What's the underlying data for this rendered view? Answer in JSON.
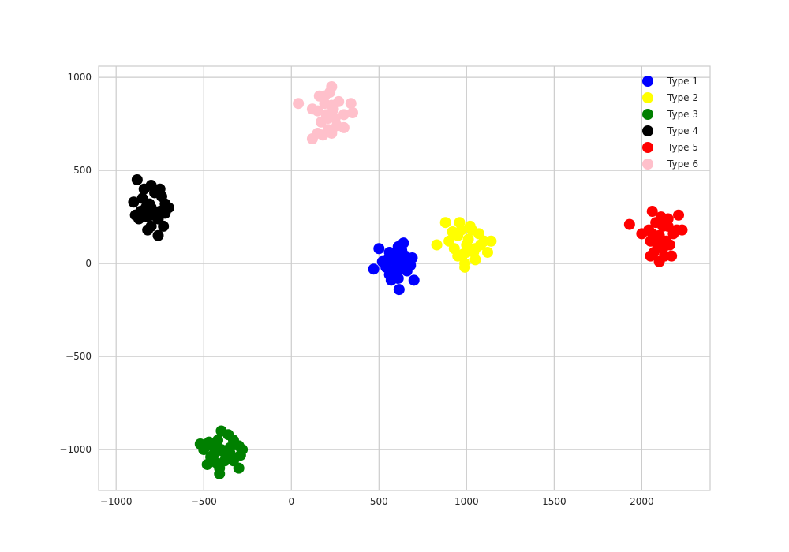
{
  "chart_data": {
    "type": "scatter",
    "title": "",
    "xlabel": "",
    "ylabel": "",
    "xlim": [
      -1100,
      2390
    ],
    "ylim": [
      -1220,
      1060
    ],
    "xticks": [
      -1000,
      -500,
      0,
      500,
      1000,
      1500,
      2000
    ],
    "yticks": [
      -1000,
      -500,
      0,
      500,
      1000
    ],
    "xtick_labels": [
      "−1000",
      "−500",
      "0",
      "500",
      "1000",
      "1500",
      "2000"
    ],
    "ytick_labels": [
      "−1000",
      "−500",
      "0",
      "500",
      "1000"
    ],
    "grid": true,
    "legend_placement": "top-right",
    "series": [
      {
        "name": "Type 1",
        "color": "#0000ff",
        "points": [
          [
            600,
            0
          ],
          [
            550,
            20
          ],
          [
            650,
            40
          ],
          [
            580,
            -40
          ],
          [
            620,
            -20
          ],
          [
            560,
            60
          ],
          [
            630,
            70
          ],
          [
            520,
            10
          ],
          [
            690,
            30
          ],
          [
            610,
            -80
          ],
          [
            570,
            -90
          ],
          [
            660,
            -40
          ],
          [
            500,
            80
          ],
          [
            640,
            110
          ],
          [
            590,
            40
          ],
          [
            540,
            -20
          ],
          [
            680,
            -10
          ],
          [
            610,
            90
          ],
          [
            700,
            -90
          ],
          [
            470,
            -30
          ],
          [
            615,
            -140
          ],
          [
            600,
            -60
          ],
          [
            650,
            0
          ],
          [
            560,
            -60
          ],
          [
            620,
            40
          ]
        ]
      },
      {
        "name": "Type 2",
        "color": "#ffff00",
        "points": [
          [
            1000,
            100
          ],
          [
            950,
            150
          ],
          [
            1050,
            80
          ],
          [
            980,
            50
          ],
          [
            1020,
            200
          ],
          [
            960,
            220
          ],
          [
            1100,
            120
          ],
          [
            900,
            120
          ],
          [
            1040,
            60
          ],
          [
            990,
            0
          ],
          [
            930,
            80
          ],
          [
            1070,
            160
          ],
          [
            1010,
            130
          ],
          [
            970,
            180
          ],
          [
            1120,
            60
          ],
          [
            1050,
            20
          ],
          [
            950,
            40
          ],
          [
            880,
            220
          ],
          [
            1030,
            180
          ],
          [
            1000,
            60
          ],
          [
            920,
            170
          ],
          [
            1080,
            100
          ],
          [
            1140,
            120
          ],
          [
            830,
            100
          ],
          [
            990,
            -20
          ]
        ]
      },
      {
        "name": "Type 3",
        "color": "#008000",
        "points": [
          [
            -400,
            -1000
          ],
          [
            -450,
            -980
          ],
          [
            -350,
            -1020
          ],
          [
            -420,
            -950
          ],
          [
            -380,
            -1060
          ],
          [
            -460,
            -1040
          ],
          [
            -300,
            -980
          ],
          [
            -500,
            -1000
          ],
          [
            -360,
            -920
          ],
          [
            -410,
            -1100
          ],
          [
            -330,
            -1060
          ],
          [
            -470,
            -960
          ],
          [
            -390,
            -1010
          ],
          [
            -430,
            -1070
          ],
          [
            -280,
            -1000
          ],
          [
            -520,
            -970
          ],
          [
            -300,
            -1100
          ],
          [
            -400,
            -900
          ],
          [
            -350,
            -990
          ],
          [
            -440,
            -1020
          ],
          [
            -370,
            -1040
          ],
          [
            -480,
            -1080
          ],
          [
            -330,
            -950
          ],
          [
            -410,
            -1130
          ],
          [
            -290,
            -1030
          ]
        ]
      },
      {
        "name": "Type 4",
        "color": "#000000",
        "points": [
          [
            -800,
            300
          ],
          [
            -850,
            350
          ],
          [
            -750,
            280
          ],
          [
            -820,
            250
          ],
          [
            -780,
            380
          ],
          [
            -860,
            280
          ],
          [
            -720,
            320
          ],
          [
            -900,
            330
          ],
          [
            -800,
            200
          ],
          [
            -760,
            240
          ],
          [
            -840,
            400
          ],
          [
            -740,
            360
          ],
          [
            -810,
            320
          ],
          [
            -790,
            260
          ],
          [
            -880,
            450
          ],
          [
            -730,
            200
          ],
          [
            -700,
            300
          ],
          [
            -870,
            240
          ],
          [
            -820,
            180
          ],
          [
            -760,
            150
          ],
          [
            -800,
            420
          ],
          [
            -750,
            400
          ],
          [
            -890,
            260
          ],
          [
            -720,
            270
          ],
          [
            -830,
            300
          ]
        ]
      },
      {
        "name": "Type 5",
        "color": "#ff0000",
        "points": [
          [
            2100,
            150
          ],
          [
            2150,
            200
          ],
          [
            2050,
            120
          ],
          [
            2120,
            80
          ],
          [
            2080,
            220
          ],
          [
            2180,
            160
          ],
          [
            2040,
            180
          ],
          [
            2130,
            40
          ],
          [
            2160,
            100
          ],
          [
            2090,
            100
          ],
          [
            2200,
            180
          ],
          [
            2070,
            60
          ],
          [
            2110,
            250
          ],
          [
            2210,
            260
          ],
          [
            2140,
            120
          ],
          [
            2050,
            40
          ],
          [
            2100,
            10
          ],
          [
            2230,
            180
          ],
          [
            2060,
            160
          ],
          [
            2120,
            200
          ],
          [
            1930,
            210
          ],
          [
            2000,
            160
          ],
          [
            2060,
            280
          ],
          [
            2170,
            40
          ],
          [
            2150,
            240
          ]
        ]
      },
      {
        "name": "Type 6",
        "color": "#ffc0cb",
        "points": [
          [
            200,
            800
          ],
          [
            170,
            760
          ],
          [
            230,
            850
          ],
          [
            190,
            900
          ],
          [
            250,
            780
          ],
          [
            150,
            820
          ],
          [
            210,
            720
          ],
          [
            270,
            870
          ],
          [
            180,
            690
          ],
          [
            230,
            950
          ],
          [
            300,
            800
          ],
          [
            120,
            830
          ],
          [
            40,
            860
          ],
          [
            340,
            860
          ],
          [
            350,
            810
          ],
          [
            120,
            670
          ],
          [
            300,
            730
          ],
          [
            160,
            900
          ],
          [
            220,
            920
          ],
          [
            240,
            830
          ],
          [
            190,
            860
          ],
          [
            260,
            740
          ],
          [
            150,
            700
          ],
          [
            210,
            780
          ],
          [
            230,
            700
          ]
        ]
      }
    ]
  }
}
